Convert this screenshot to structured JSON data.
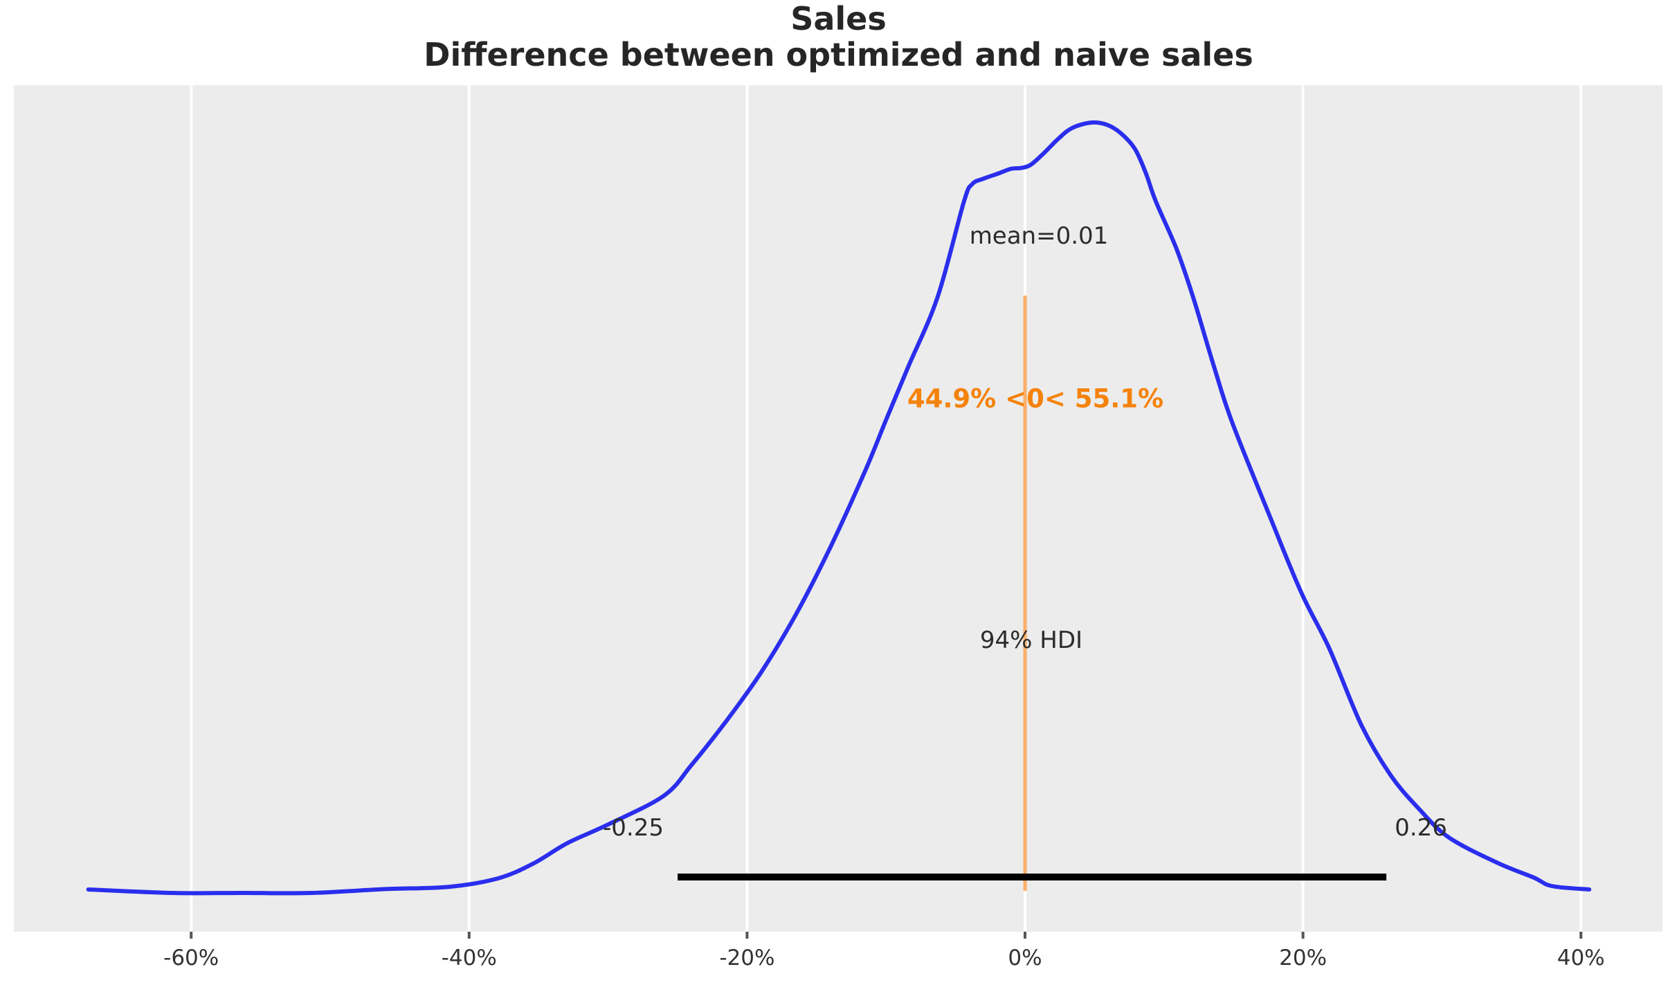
{
  "chart_data": {
    "type": "kde",
    "title_line1": "Sales",
    "title_line2": "Difference between optimized and naive sales",
    "xlabel": "",
    "ylabel": "",
    "legend": null,
    "grid": "vertical-white-on-gray",
    "x_axis": {
      "ticks": [
        {
          "label": "-60%",
          "value": -0.6
        },
        {
          "label": "-40%",
          "value": -0.4
        },
        {
          "label": "-20%",
          "value": -0.2
        },
        {
          "label": "0%",
          "value": 0.0
        },
        {
          "label": "20%",
          "value": 0.2
        },
        {
          "label": "40%",
          "value": 0.4
        }
      ],
      "range": [
        -0.727,
        0.459
      ]
    },
    "mean": {
      "label": "mean=0.01",
      "value": 0.01
    },
    "reference_value": {
      "value": 0,
      "label": "44.9% <0< 55.1%",
      "pct_below": "44.9%",
      "pct_above": "55.1%"
    },
    "hdi": {
      "label": "94% HDI",
      "lower": -0.25,
      "upper": 0.26,
      "lower_label": "-0.25",
      "upper_label": "0.26"
    },
    "curve": {
      "x": [
        -0.674,
        -0.613,
        -0.563,
        -0.513,
        -0.46,
        -0.414,
        -0.379,
        -0.354,
        -0.329,
        -0.301,
        -0.26,
        -0.24,
        -0.215,
        -0.19,
        -0.165,
        -0.14,
        -0.115,
        -0.1,
        -0.084,
        -0.063,
        -0.044,
        -0.038,
        -0.03,
        -0.019,
        -0.01,
        -0.003,
        0.004,
        0.014,
        0.024,
        0.034,
        0.048,
        0.059,
        0.069,
        0.079,
        0.087,
        0.094,
        0.109,
        0.121,
        0.136,
        0.149,
        0.177,
        0.199,
        0.219,
        0.242,
        0.263,
        0.283,
        0.305,
        0.34,
        0.366,
        0.379,
        0.406
      ],
      "density": [
        0.0045,
        0.0,
        0.0,
        0.0,
        0.005,
        0.008,
        0.019,
        0.038,
        0.065,
        0.088,
        0.126,
        0.166,
        0.223,
        0.286,
        0.361,
        0.449,
        0.548,
        0.614,
        0.683,
        0.773,
        0.897,
        0.92,
        0.927,
        0.934,
        0.94,
        0.941,
        0.945,
        0.961,
        0.979,
        0.993,
        1.0,
        0.997,
        0.986,
        0.966,
        0.934,
        0.898,
        0.836,
        0.773,
        0.683,
        0.611,
        0.485,
        0.389,
        0.317,
        0.218,
        0.153,
        0.11,
        0.072,
        0.039,
        0.02,
        0.009,
        0.0045
      ]
    },
    "colors": {
      "curve": "#2a2eec",
      "reference_line": "#ff7f0e",
      "reference_text": "#f5820b",
      "hdi_bar": "#000000",
      "plot_background": "#ececec",
      "gridline": "#ffffff",
      "tick": "#555555",
      "annotation_text": "#2b2b2b",
      "title_text": "#262626"
    }
  }
}
